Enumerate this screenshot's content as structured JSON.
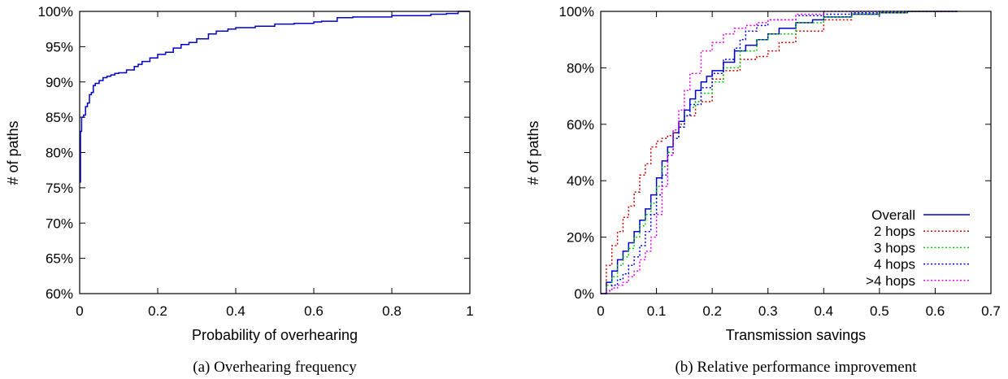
{
  "chart_data": [
    {
      "type": "line",
      "caption": "(a) Overhearing frequency",
      "xlabel": "Probability of overhearing",
      "ylabel": "# of paths",
      "xlim": [
        0,
        1
      ],
      "ylim": [
        60,
        100
      ],
      "xticks": [
        "0",
        "0.2",
        "0.4",
        "0.6",
        "0.8",
        "1"
      ],
      "yticks": [
        "60%",
        "65%",
        "70%",
        "75%",
        "80%",
        "85%",
        "90%",
        "95%",
        "100%"
      ],
      "series": [
        {
          "color": "#0000cc",
          "style": "solid",
          "x": [
            0,
            0.002,
            0.005,
            0.01,
            0.015,
            0.02,
            0.025,
            0.03,
            0.035,
            0.04,
            0.05,
            0.06,
            0.07,
            0.08,
            0.09,
            0.1,
            0.12,
            0.14,
            0.15,
            0.16,
            0.18,
            0.2,
            0.22,
            0.24,
            0.26,
            0.28,
            0.3,
            0.33,
            0.35,
            0.38,
            0.4,
            0.45,
            0.5,
            0.55,
            0.6,
            0.62,
            0.66,
            0.7,
            0.8,
            0.9,
            0.94,
            0.97,
            1.0
          ],
          "y": [
            75.8,
            83.0,
            85.0,
            85.3,
            86.5,
            87.0,
            88.2,
            88.5,
            89.5,
            89.8,
            90.2,
            90.6,
            90.8,
            91.0,
            91.2,
            91.3,
            91.7,
            92.2,
            92.5,
            92.9,
            93.4,
            93.9,
            94.2,
            94.8,
            95.3,
            95.6,
            96.1,
            96.8,
            97.2,
            97.5,
            97.7,
            97.9,
            98.2,
            98.3,
            98.5,
            98.6,
            99.1,
            99.2,
            99.4,
            99.6,
            99.7,
            100,
            100
          ]
        }
      ]
    },
    {
      "type": "line",
      "caption": "(b) Relative performance improvement",
      "xlabel": "Transmission savings",
      "ylabel": "# of paths",
      "xlim": [
        0,
        0.7
      ],
      "ylim": [
        0,
        100
      ],
      "xticks": [
        "0",
        "0.1",
        "0.2",
        "0.3",
        "0.4",
        "0.5",
        "0.6",
        "0.7"
      ],
      "yticks": [
        "0%",
        "20%",
        "40%",
        "60%",
        "80%",
        "100%"
      ],
      "legend_position": "bottom-right",
      "series": [
        {
          "name": "Overall",
          "color": "#0000cc",
          "style": "solid",
          "x": [
            0,
            0.01,
            0.02,
            0.03,
            0.04,
            0.05,
            0.06,
            0.07,
            0.08,
            0.09,
            0.1,
            0.11,
            0.12,
            0.13,
            0.14,
            0.15,
            0.16,
            0.17,
            0.18,
            0.19,
            0.2,
            0.22,
            0.24,
            0.26,
            0.28,
            0.3,
            0.32,
            0.35,
            0.38,
            0.4,
            0.45,
            0.5,
            0.55,
            0.6,
            0.64
          ],
          "y": [
            0,
            4,
            8,
            12,
            15,
            18,
            22,
            26,
            30,
            35,
            41,
            47,
            52,
            57,
            61,
            65,
            69,
            72,
            75,
            77,
            79,
            82,
            86,
            88,
            90,
            92,
            94,
            96,
            97,
            98,
            99,
            99.5,
            100,
            100,
            100
          ]
        },
        {
          "name": "2 hops",
          "color": "#cc0000",
          "style": "dotted",
          "x": [
            0,
            0.01,
            0.02,
            0.03,
            0.04,
            0.05,
            0.06,
            0.07,
            0.08,
            0.09,
            0.1,
            0.11,
            0.12,
            0.13,
            0.14,
            0.15,
            0.17,
            0.2,
            0.22,
            0.25,
            0.28,
            0.3,
            0.32,
            0.35,
            0.4,
            0.45,
            0.5,
            0.55,
            0.6,
            0.64
          ],
          "y": [
            0,
            10,
            17,
            22,
            27,
            31,
            36,
            42,
            46,
            52,
            54,
            55,
            56,
            57,
            60,
            63,
            68,
            76,
            79,
            83,
            84,
            86,
            89,
            93,
            97,
            99,
            99.5,
            100,
            100,
            100
          ]
        },
        {
          "name": "3 hops",
          "color": "#00cc00",
          "style": "dotted",
          "x": [
            0,
            0.01,
            0.02,
            0.03,
            0.04,
            0.05,
            0.06,
            0.07,
            0.08,
            0.09,
            0.1,
            0.11,
            0.12,
            0.13,
            0.14,
            0.15,
            0.16,
            0.17,
            0.18,
            0.2,
            0.22,
            0.25,
            0.28,
            0.3,
            0.35,
            0.4,
            0.45,
            0.5,
            0.55,
            0.6
          ],
          "y": [
            0,
            3,
            6,
            10,
            13,
            16,
            20,
            24,
            28,
            32,
            38,
            45,
            50,
            55,
            59,
            63,
            66,
            68,
            71,
            75,
            80,
            86,
            90,
            92,
            96,
            98,
            99,
            99.5,
            100,
            100
          ]
        },
        {
          "name": "4 hops",
          "color": "#0000ee",
          "style": "dotted",
          "x": [
            0,
            0.01,
            0.02,
            0.03,
            0.04,
            0.05,
            0.06,
            0.07,
            0.08,
            0.09,
            0.1,
            0.11,
            0.12,
            0.13,
            0.14,
            0.15,
            0.16,
            0.18,
            0.2,
            0.22,
            0.24,
            0.25,
            0.26,
            0.28,
            0.3,
            0.35,
            0.4,
            0.45,
            0.5,
            0.55
          ],
          "y": [
            0,
            1,
            3,
            5,
            7,
            10,
            13,
            17,
            22,
            28,
            35,
            42,
            49,
            55,
            59,
            63,
            67,
            73,
            78,
            83,
            87,
            90,
            93,
            95,
            97,
            98.5,
            99,
            99.5,
            100,
            100
          ]
        },
        {
          "name": ">4 hops",
          "color": "#ee00ee",
          "style": "dotted",
          "x": [
            0,
            0.01,
            0.02,
            0.03,
            0.04,
            0.05,
            0.06,
            0.07,
            0.08,
            0.09,
            0.1,
            0.11,
            0.12,
            0.13,
            0.14,
            0.15,
            0.16,
            0.18,
            0.2,
            0.22,
            0.24,
            0.26,
            0.28,
            0.3,
            0.35,
            0.4,
            0.45,
            0.5,
            0.55
          ],
          "y": [
            0,
            1,
            2,
            3,
            4,
            6,
            8,
            12,
            15,
            20,
            28,
            38,
            49,
            58,
            65,
            72,
            78,
            86,
            89,
            92,
            94,
            95,
            96,
            97,
            99,
            100,
            100,
            100,
            100
          ]
        }
      ]
    }
  ]
}
